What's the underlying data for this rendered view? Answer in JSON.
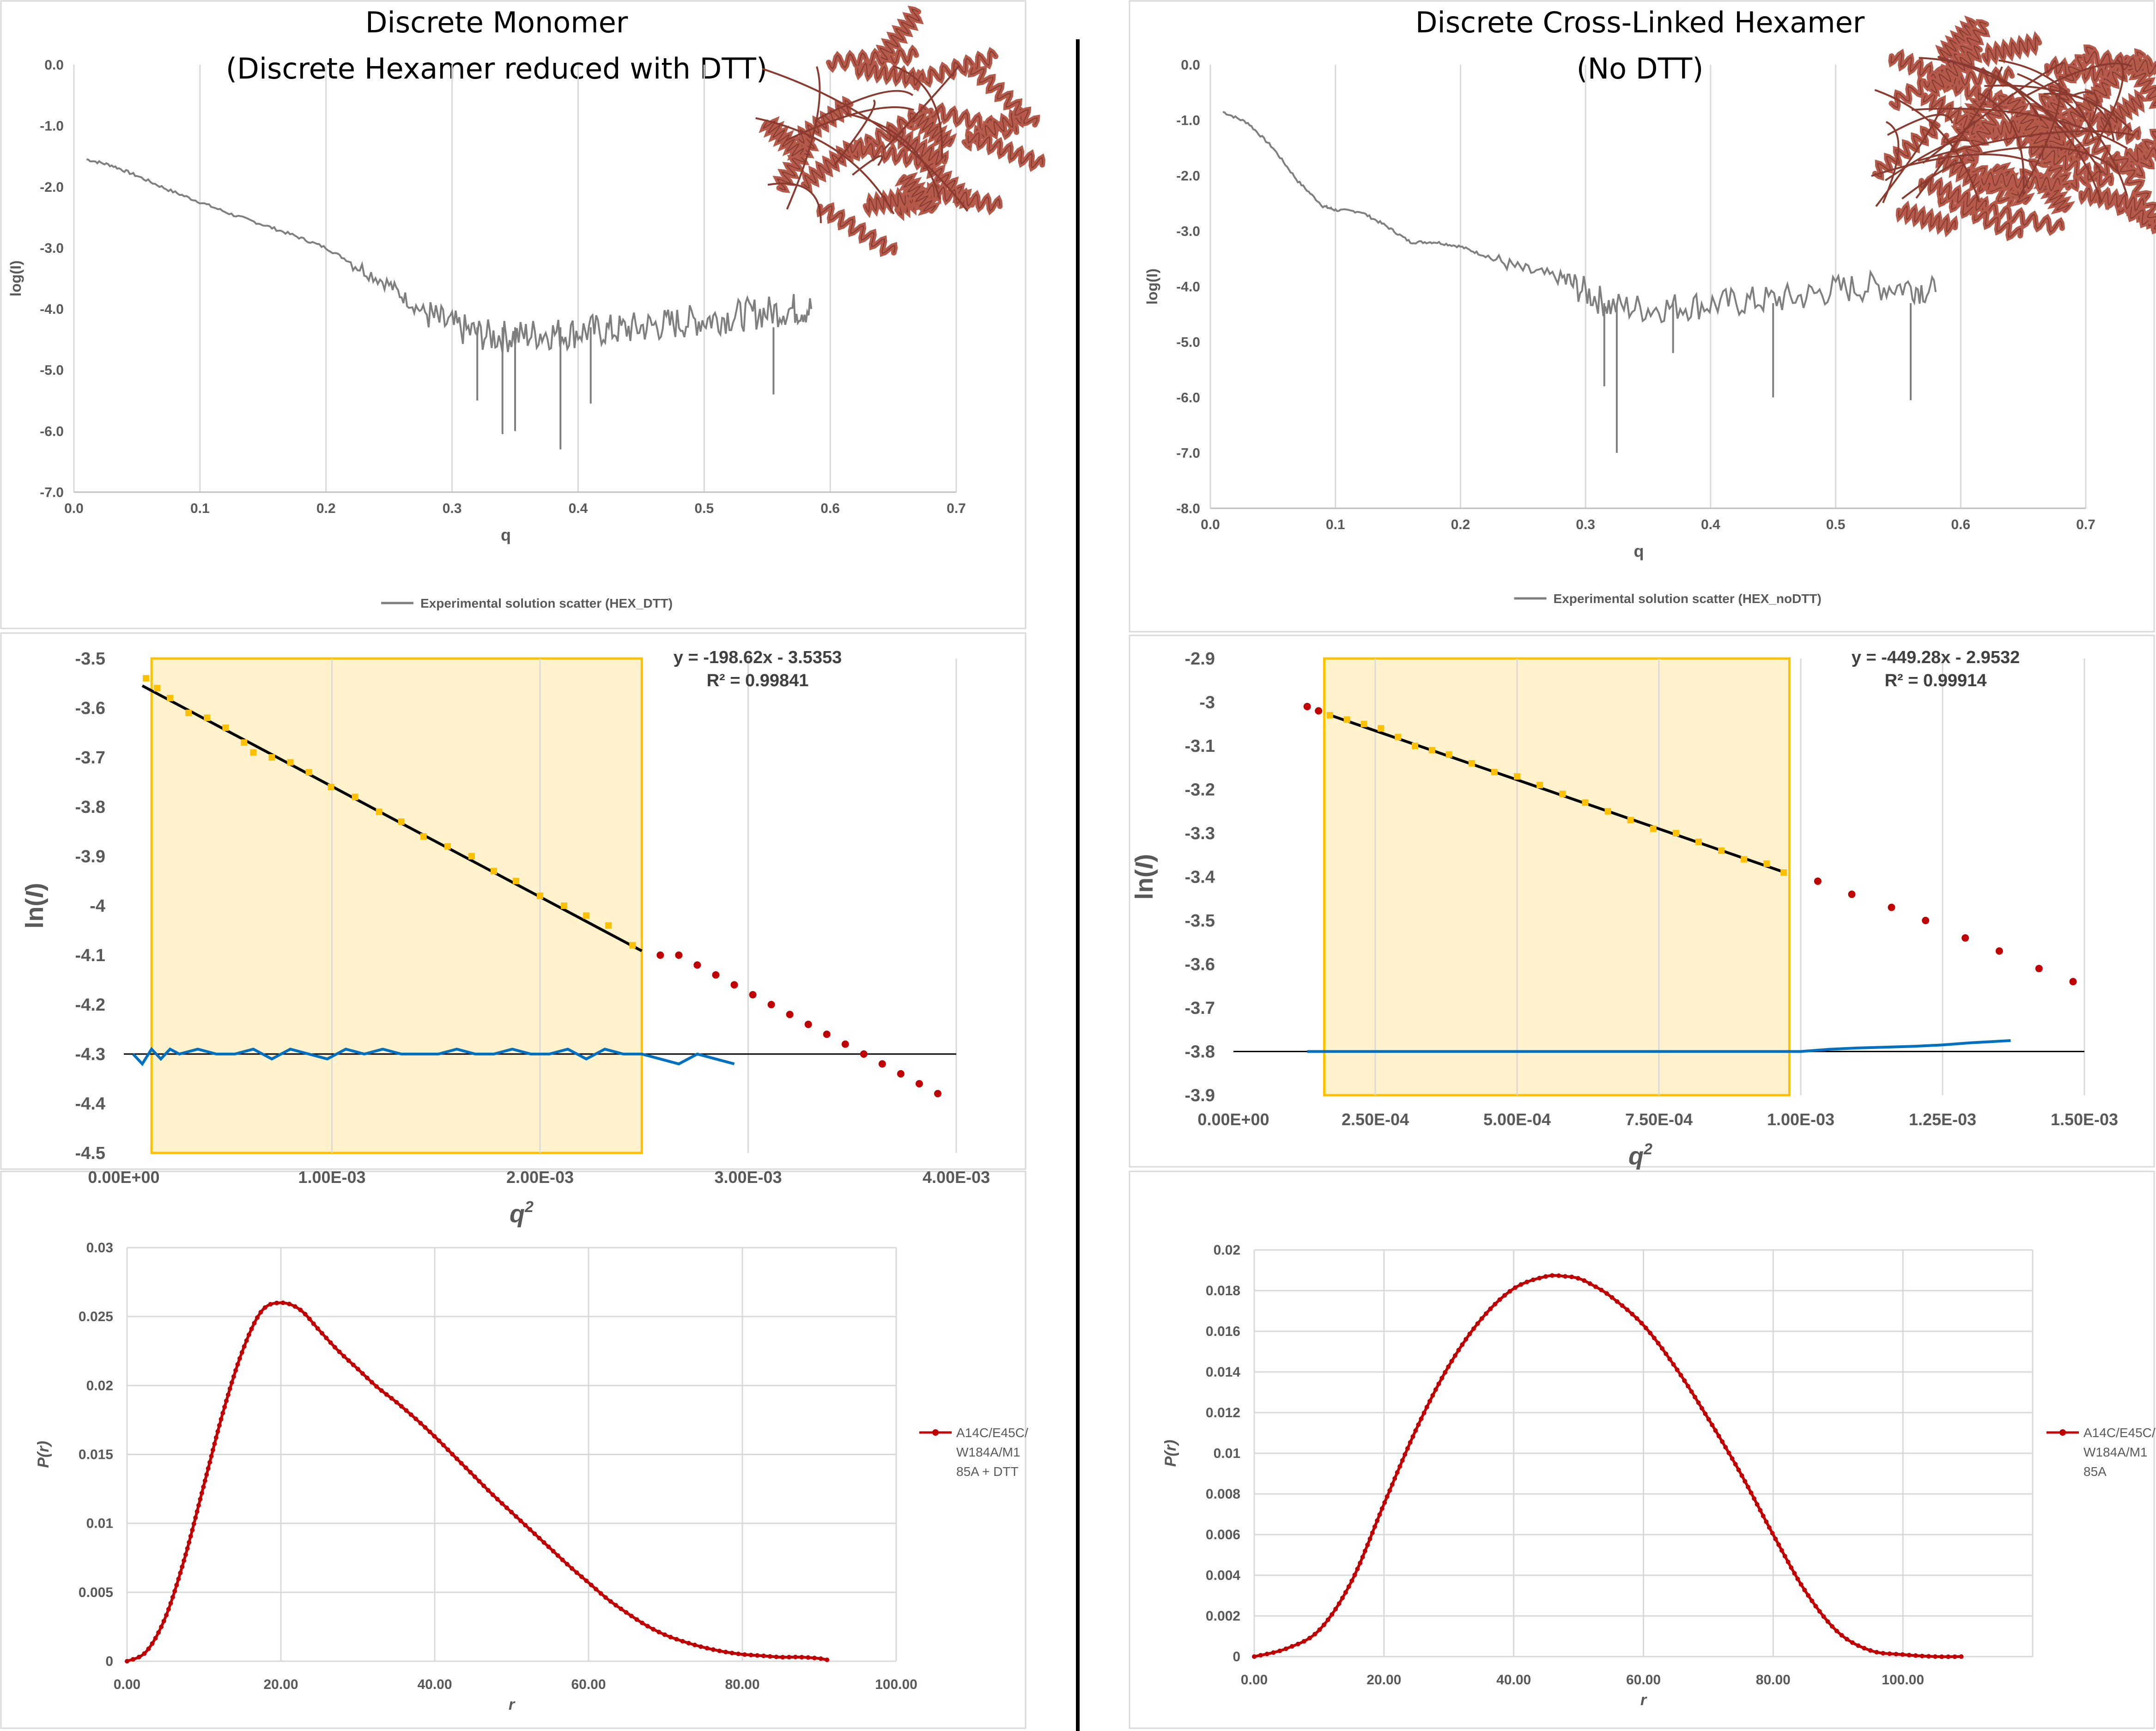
{
  "left": {
    "title_line1": "Discrete Monomer",
    "title_line2": "(Discrete Hexamer reduced with DTT)"
  },
  "right": {
    "title_line1": "Discrete Cross-Linked Hexamer",
    "title_line2": "(No DTT)"
  },
  "colors": {
    "scatter_line": "#7f7f7f",
    "guinier_points_fit": "#ffc000",
    "guinier_points_out": "#c00000",
    "residuals": "#0070c0",
    "fit_line": "#000000",
    "fit_region": "#fff2cc",
    "fit_region_border": "#ffc000",
    "pr_line": "#c00000",
    "protein_cartoon": "#b5594a"
  },
  "icons": {
    "left_structure": "protein-monomer-cartoon-icon",
    "right_structure": "protein-hexamer-cartoon-icon"
  },
  "chart_data": [
    {
      "id": "saxs_left",
      "type": "line",
      "xlabel": "q",
      "ylabel": "log(I)",
      "xlim": [
        0,
        0.7
      ],
      "ylim": [
        -7,
        0
      ],
      "x_ticks": [
        "0.0",
        "0.1",
        "0.2",
        "0.3",
        "0.4",
        "0.5",
        "0.6",
        "0.7"
      ],
      "y_ticks": [
        "0.0",
        "-1.0",
        "-2.0",
        "-3.0",
        "-4.0",
        "-5.0",
        "-6.0",
        "-7.0"
      ],
      "grid": "vertical",
      "legend_position": "bottom",
      "series": [
        {
          "name": "Experimental solution scatter (HEX_DTT)",
          "x": [
            0.01,
            0.03,
            0.05,
            0.075,
            0.1,
            0.125,
            0.15,
            0.175,
            0.2,
            0.225,
            0.25,
            0.27,
            0.29,
            0.31,
            0.33,
            0.35,
            0.37,
            0.39,
            0.41,
            0.43,
            0.45,
            0.47,
            0.49,
            0.51,
            0.53,
            0.55,
            0.57,
            0.585
          ],
          "y": [
            -1.55,
            -1.65,
            -1.82,
            -2.05,
            -2.25,
            -2.45,
            -2.62,
            -2.8,
            -3.0,
            -3.3,
            -3.6,
            -3.95,
            -4.2,
            -4.35,
            -4.45,
            -4.45,
            -4.4,
            -4.4,
            -4.35,
            -4.35,
            -4.3,
            -4.25,
            -4.2,
            -4.15,
            -4.1,
            -4.05,
            -4.0,
            -4.0
          ],
          "dips_x": [
            0.32,
            0.34,
            0.35,
            0.386,
            0.41,
            0.555
          ],
          "dips_y": [
            -5.5,
            -6.05,
            -6.0,
            -6.3,
            -5.55,
            -5.4
          ]
        }
      ]
    },
    {
      "id": "saxs_right",
      "type": "line",
      "xlabel": "q",
      "ylabel": "log(I)",
      "xlim": [
        0,
        0.7
      ],
      "ylim": [
        -8,
        0
      ],
      "x_ticks": [
        "0.0",
        "0.1",
        "0.2",
        "0.3",
        "0.4",
        "0.5",
        "0.6",
        "0.7"
      ],
      "y_ticks": [
        "0.0",
        "-1.0",
        "-2.0",
        "-3.0",
        "-4.0",
        "-5.0",
        "-6.0",
        "-7.0",
        "-8.0"
      ],
      "grid": "vertical",
      "legend_position": "bottom",
      "series": [
        {
          "name": "Experimental solution scatter (HEX_noDTT)",
          "x": [
            0.01,
            0.03,
            0.05,
            0.07,
            0.09,
            0.1,
            0.12,
            0.14,
            0.16,
            0.18,
            0.2,
            0.22,
            0.25,
            0.28,
            0.3,
            0.32,
            0.35,
            0.38,
            0.41,
            0.44,
            0.47,
            0.5,
            0.53,
            0.56,
            0.58
          ],
          "y": [
            -0.85,
            -1.05,
            -1.5,
            -2.1,
            -2.55,
            -2.62,
            -2.65,
            -2.9,
            -3.2,
            -3.2,
            -3.28,
            -3.45,
            -3.7,
            -3.85,
            -4.1,
            -4.35,
            -4.4,
            -4.35,
            -4.3,
            -4.25,
            -4.2,
            -4.05,
            -4.0,
            -4.0,
            -4.1
          ],
          "dips_x": [
            0.315,
            0.325,
            0.37,
            0.45,
            0.56
          ],
          "dips_y": [
            -5.8,
            -7.0,
            -5.2,
            -6.0,
            -6.05
          ]
        }
      ]
    },
    {
      "id": "guinier_left",
      "type": "scatter",
      "xlabel": "q2",
      "ylabel": "ln(I)",
      "xlim": [
        0,
        0.0045
      ],
      "ylim": [
        -4.5,
        -3.5
      ],
      "x_ticks": [
        "0.00E+00",
        "1.00E-03",
        "2.00E-03",
        "3.00E-03",
        "4.00E-03"
      ],
      "y_ticks": [
        "-3.5",
        "-3.6",
        "-3.7",
        "-3.8",
        "-3.9",
        "-4",
        "-4.1",
        "-4.2",
        "-4.3",
        "-4.4",
        "-4.5"
      ],
      "fit_region": [
        0.00015,
        0.0028
      ],
      "fit": {
        "slope": -198.62,
        "intercept": -3.5353,
        "x_start": 0.0001,
        "x_end": 0.0028
      },
      "equation": "y = -198.62x - 3.5353",
      "r2": "R² = 0.99841",
      "points_in_fit": {
        "x": [
          0.00012,
          0.00018,
          0.00025,
          0.00035,
          0.00045,
          0.00055,
          0.00065,
          0.0007,
          0.0008,
          0.0009,
          0.001,
          0.00112,
          0.00125,
          0.00138,
          0.0015,
          0.00162,
          0.00175,
          0.00188,
          0.002,
          0.00212,
          0.00225,
          0.00238,
          0.0025,
          0.00262,
          0.00275
        ],
        "y": [
          -3.54,
          -3.56,
          -3.58,
          -3.61,
          -3.62,
          -3.64,
          -3.67,
          -3.69,
          -3.7,
          -3.71,
          -3.73,
          -3.76,
          -3.78,
          -3.81,
          -3.83,
          -3.86,
          -3.88,
          -3.9,
          -3.93,
          -3.95,
          -3.98,
          -4.0,
          -4.02,
          -4.04,
          -4.08
        ]
      },
      "points_outside": {
        "x": [
          0.0029,
          0.003,
          0.0031,
          0.0032,
          0.0033,
          0.0034,
          0.0035,
          0.0036,
          0.0037,
          0.0038,
          0.0039,
          0.004,
          0.0041,
          0.0042,
          0.0043,
          0.0044
        ],
        "y": [
          -4.1,
          -4.1,
          -4.12,
          -4.14,
          -4.16,
          -4.18,
          -4.2,
          -4.22,
          -4.24,
          -4.26,
          -4.28,
          -4.3,
          -4.32,
          -4.34,
          -4.36,
          -4.38
        ]
      },
      "residuals": {
        "baseline": -4.3,
        "x": [
          5e-05,
          0.0001,
          0.00015,
          0.0002,
          0.00025,
          0.0003,
          0.0004,
          0.0005,
          0.0006,
          0.0007,
          0.0008,
          0.0009,
          0.001,
          0.0011,
          0.0012,
          0.0013,
          0.0014,
          0.0015,
          0.0016,
          0.0017,
          0.0018,
          0.0019,
          0.002,
          0.0021,
          0.0022,
          0.0023,
          0.0024,
          0.0025,
          0.0026,
          0.0027,
          0.0028,
          0.0029,
          0.003,
          0.0031,
          0.0032,
          0.0033
        ],
        "y": [
          -4.3,
          -4.32,
          -4.29,
          -4.31,
          -4.29,
          -4.3,
          -4.29,
          -4.3,
          -4.3,
          -4.29,
          -4.31,
          -4.29,
          -4.3,
          -4.31,
          -4.29,
          -4.3,
          -4.29,
          -4.3,
          -4.3,
          -4.3,
          -4.29,
          -4.3,
          -4.3,
          -4.29,
          -4.3,
          -4.3,
          -4.29,
          -4.31,
          -4.29,
          -4.3,
          -4.3,
          -4.31,
          -4.32,
          -4.3,
          -4.31,
          -4.32
        ]
      }
    },
    {
      "id": "guinier_right",
      "type": "scatter",
      "xlabel": "q2",
      "ylabel": "ln(I)",
      "xlim": [
        0,
        0.0015
      ],
      "ylim": [
        -3.9,
        -2.9
      ],
      "x_ticks": [
        "0.00E+00",
        "2.50E-04",
        "5.00E-04",
        "7.50E-04",
        "1.00E-03",
        "1.25E-03",
        "1.50E-03"
      ],
      "y_ticks": [
        "-2.9",
        "-3",
        "-3.1",
        "-3.2",
        "-3.3",
        "-3.4",
        "-3.5",
        "-3.6",
        "-3.7",
        "-3.8",
        "-3.9"
      ],
      "fit_region": [
        0.00016,
        0.00098
      ],
      "fit": {
        "slope": -449.28,
        "intercept": -2.9532,
        "x_start": 0.00017,
        "x_end": 0.00097
      },
      "equation": "y = -449.28x - 2.9532",
      "r2": "R² = 0.99914",
      "points_in_fit": {
        "x": [
          0.00017,
          0.0002,
          0.00023,
          0.00026,
          0.00029,
          0.00032,
          0.00035,
          0.00038,
          0.00042,
          0.00046,
          0.0005,
          0.00054,
          0.00058,
          0.00062,
          0.00066,
          0.0007,
          0.00074,
          0.00078,
          0.00082,
          0.00086,
          0.0009,
          0.00094,
          0.00097
        ],
        "y": [
          -3.03,
          -3.04,
          -3.05,
          -3.06,
          -3.08,
          -3.1,
          -3.11,
          -3.12,
          -3.14,
          -3.16,
          -3.17,
          -3.19,
          -3.21,
          -3.23,
          -3.25,
          -3.27,
          -3.29,
          -3.3,
          -3.32,
          -3.34,
          -3.36,
          -3.37,
          -3.39
        ]
      },
      "points_outside": {
        "x": [
          0.00013,
          0.00015,
          0.00103,
          0.00109,
          0.00116,
          0.00122,
          0.00129,
          0.00135,
          0.00142,
          0.00148
        ],
        "y": [
          -3.01,
          -3.02,
          -3.41,
          -3.44,
          -3.47,
          -3.5,
          -3.54,
          -3.57,
          -3.61,
          -3.64
        ]
      },
      "residuals": {
        "baseline": -3.8,
        "x": [
          0.00013,
          0.0002,
          0.00025,
          0.0003,
          0.00035,
          0.0004,
          0.00045,
          0.0005,
          0.00055,
          0.0006,
          0.00065,
          0.0007,
          0.00075,
          0.0008,
          0.00085,
          0.0009,
          0.00095,
          0.001,
          0.00105,
          0.0011,
          0.00115,
          0.0012,
          0.00125,
          0.0013,
          0.00137
        ],
        "y": [
          -3.8,
          -3.8,
          -3.8,
          -3.8,
          -3.8,
          -3.8,
          -3.8,
          -3.8,
          -3.8,
          -3.8,
          -3.8,
          -3.8,
          -3.8,
          -3.8,
          -3.8,
          -3.8,
          -3.8,
          -3.8,
          -3.795,
          -3.792,
          -3.79,
          -3.788,
          -3.785,
          -3.78,
          -3.775
        ]
      }
    },
    {
      "id": "pr_left",
      "type": "line",
      "xlabel": "r",
      "ylabel": "P(r)",
      "xlim": [
        0,
        100
      ],
      "ylim": [
        0,
        0.03
      ],
      "x_ticks": [
        "0.00",
        "20.00",
        "40.00",
        "60.00",
        "80.00",
        "100.00"
      ],
      "y_ticks": [
        "0",
        "0.005",
        "0.01",
        "0.015",
        "0.02",
        "0.025",
        "0.03"
      ],
      "grid": "both",
      "legend_position": "right",
      "series": [
        {
          "name_lines": [
            "A14C/E45C/",
            "W184A/M1",
            "85A + DTT"
          ],
          "x": [
            0,
            2.5,
            5,
            7.5,
            10,
            12.5,
            15,
            17.5,
            20,
            22.5,
            25,
            27.5,
            30,
            32.5,
            35,
            37.5,
            40,
            42.5,
            45,
            47.5,
            50,
            52.5,
            55,
            57.5,
            60,
            62.5,
            65,
            67.5,
            70,
            72.5,
            75,
            77.5,
            80,
            82.5,
            85,
            87.5,
            90,
            91
          ],
          "y": [
            0,
            0.0007,
            0.0032,
            0.0075,
            0.0128,
            0.0181,
            0.0225,
            0.0254,
            0.026,
            0.0255,
            0.024,
            0.0225,
            0.0212,
            0.0199,
            0.0188,
            0.0176,
            0.0163,
            0.0149,
            0.0135,
            0.0121,
            0.0108,
            0.0095,
            0.0082,
            0.0069,
            0.0057,
            0.0045,
            0.0035,
            0.0026,
            0.0019,
            0.0014,
            0.001,
            0.0007,
            0.0005,
            0.0004,
            0.0003,
            0.0003,
            0.0002,
            0.0001
          ]
        }
      ]
    },
    {
      "id": "pr_right",
      "type": "line",
      "xlabel": "r",
      "ylabel": "P(r)",
      "xlim": [
        0,
        120
      ],
      "ylim": [
        0,
        0.02
      ],
      "x_ticks": [
        "0.00",
        "20.00",
        "40.00",
        "60.00",
        "80.00",
        "100.00"
      ],
      "y_ticks": [
        "0",
        "0.002",
        "0.004",
        "0.006",
        "0.008",
        "0.01",
        "0.012",
        "0.014",
        "0.016",
        "0.018",
        "0.02"
      ],
      "grid": "both",
      "legend_position": "right",
      "series": [
        {
          "name_lines": [
            "A14C/E45C/",
            "W184A/M1",
            "85A"
          ],
          "x": [
            0,
            5,
            10,
            15,
            20,
            25,
            30,
            35,
            40,
            45,
            48,
            50,
            52,
            55,
            60,
            65,
            70,
            75,
            80,
            85,
            90,
            95,
            100,
            105,
            109
          ],
          "y": [
            0,
            0.0004,
            0.0013,
            0.0037,
            0.0075,
            0.0112,
            0.0143,
            0.0166,
            0.0181,
            0.0187,
            0.0187,
            0.0186,
            0.0183,
            0.0177,
            0.0163,
            0.0142,
            0.0117,
            0.009,
            0.006,
            0.0032,
            0.0012,
            0.0003,
            0.0001,
            0,
            0
          ]
        }
      ]
    }
  ]
}
